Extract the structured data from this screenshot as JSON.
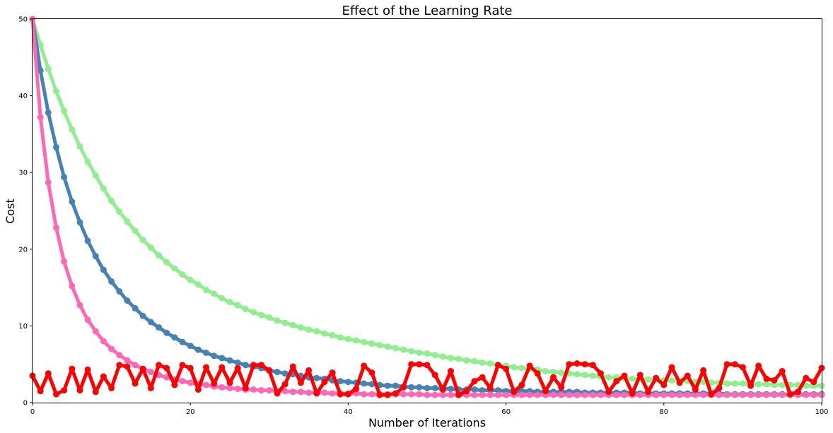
{
  "chart_data": {
    "type": "line",
    "title": "Effect of the Learning Rate",
    "xlabel": "Number of Iterations",
    "ylabel": "Cost",
    "xlim": [
      0,
      100
    ],
    "ylim": [
      0,
      50
    ],
    "xticks": [
      0,
      20,
      40,
      60,
      80,
      100
    ],
    "yticks": [
      0,
      10,
      20,
      30,
      40,
      50
    ],
    "xtick_labels": [
      "0",
      "20",
      "40",
      "60",
      "80",
      "100"
    ],
    "ytick_labels": [
      "0",
      "10",
      "20",
      "30",
      "40",
      "50"
    ],
    "grid": false,
    "legend": "none",
    "x": [
      0,
      1,
      2,
      3,
      4,
      5,
      6,
      7,
      8,
      9,
      10,
      11,
      12,
      13,
      14,
      15,
      16,
      17,
      18,
      19,
      20,
      21,
      22,
      23,
      24,
      25,
      26,
      27,
      28,
      29,
      30,
      31,
      32,
      33,
      34,
      35,
      36,
      37,
      38,
      39,
      40,
      41,
      42,
      43,
      44,
      45,
      46,
      47,
      48,
      49,
      50,
      51,
      52,
      53,
      54,
      55,
      56,
      57,
      58,
      59,
      60,
      61,
      62,
      63,
      64,
      65,
      66,
      67,
      68,
      69,
      70,
      71,
      72,
      73,
      74,
      75,
      76,
      77,
      78,
      79,
      80,
      81,
      82,
      83,
      84,
      85,
      86,
      87,
      88,
      89,
      90,
      91,
      92,
      93,
      94,
      95,
      96,
      97,
      98,
      99,
      100
    ],
    "series": [
      {
        "color": "#90ee90",
        "values": [
          50.0,
          46.6,
          43.5,
          40.6,
          38.0,
          35.6,
          33.4,
          31.4,
          29.6,
          27.9,
          26.3,
          24.9,
          23.6,
          22.4,
          21.2,
          20.2,
          19.2,
          18.3,
          17.5,
          16.7,
          16.0,
          15.4,
          14.7,
          14.2,
          13.6,
          13.1,
          12.7,
          12.2,
          11.8,
          11.4,
          11.1,
          10.7,
          10.4,
          10.1,
          9.8,
          9.5,
          9.3,
          9.0,
          8.8,
          8.5,
          8.3,
          8.1,
          7.9,
          7.7,
          7.5,
          7.3,
          7.1,
          6.9,
          6.7,
          6.5,
          6.4,
          6.2,
          6.0,
          5.8,
          5.7,
          5.5,
          5.4,
          5.2,
          5.1,
          4.9,
          4.8,
          4.6,
          4.5,
          4.4,
          4.3,
          4.1,
          4.0,
          3.9,
          3.8,
          3.7,
          3.6,
          3.5,
          3.4,
          3.3,
          3.3,
          3.2,
          3.1,
          3.1,
          3.0,
          3.0,
          2.9,
          2.9,
          2.8,
          2.8,
          2.7,
          2.7,
          2.6,
          2.6,
          2.5,
          2.5,
          2.5,
          2.4,
          2.4,
          2.4,
          2.3,
          2.3,
          2.3,
          2.3,
          2.2,
          2.2,
          2.2
        ]
      },
      {
        "color": "#4682b4",
        "values": [
          50.0,
          43.3,
          37.8,
          33.3,
          29.4,
          26.2,
          23.5,
          21.1,
          19.1,
          17.3,
          15.8,
          14.5,
          13.3,
          12.3,
          11.3,
          10.5,
          9.8,
          9.1,
          8.5,
          7.9,
          7.4,
          6.9,
          6.5,
          6.1,
          5.8,
          5.5,
          5.2,
          4.9,
          4.7,
          4.5,
          4.2,
          4.0,
          3.8,
          3.7,
          3.5,
          3.3,
          3.2,
          3.1,
          2.9,
          2.8,
          2.7,
          2.6,
          2.5,
          2.4,
          2.3,
          2.2,
          2.2,
          2.1,
          2.0,
          2.0,
          1.9,
          1.9,
          1.8,
          1.8,
          1.7,
          1.7,
          1.7,
          1.6,
          1.6,
          1.6,
          1.5,
          1.5,
          1.5,
          1.5,
          1.4,
          1.4,
          1.4,
          1.4,
          1.4,
          1.4,
          1.3,
          1.3,
          1.3,
          1.3,
          1.3,
          1.3,
          1.3,
          1.2,
          1.2,
          1.2,
          1.2,
          1.2,
          1.2,
          1.2,
          1.2,
          1.2,
          1.2,
          1.2,
          1.1,
          1.1,
          1.1,
          1.1,
          1.1,
          1.1,
          1.1,
          1.1,
          1.1,
          1.1,
          1.1,
          1.1,
          1.1
        ]
      },
      {
        "color": "#ff69b4",
        "values": [
          50.0,
          37.2,
          28.7,
          22.8,
          18.4,
          15.2,
          12.7,
          10.8,
          9.3,
          8.0,
          7.0,
          6.2,
          5.5,
          4.9,
          4.4,
          4.0,
          3.6,
          3.3,
          3.0,
          2.8,
          2.6,
          2.4,
          2.3,
          2.1,
          2.0,
          1.9,
          1.8,
          1.7,
          1.7,
          1.6,
          1.6,
          1.5,
          1.5,
          1.4,
          1.4,
          1.3,
          1.3,
          1.3,
          1.2,
          1.2,
          1.2,
          1.2,
          1.1,
          1.1,
          1.1,
          1.1,
          1.1,
          1.1,
          1.1,
          1.1,
          1.0,
          1.0,
          1.0,
          1.0,
          1.0,
          1.0,
          1.0,
          1.0,
          1.0,
          1.0,
          1.0,
          1.0,
          1.0,
          1.0,
          1.0,
          1.0,
          1.0,
          1.0,
          1.0,
          1.0,
          1.0,
          1.0,
          1.0,
          1.0,
          1.0,
          1.0,
          1.0,
          1.0,
          1.0,
          1.0,
          1.0,
          1.0,
          1.0,
          1.0,
          1.0,
          1.0,
          1.0,
          1.0,
          1.0,
          1.0,
          1.0,
          1.0,
          1.0,
          1.0,
          1.0,
          1.0,
          1.0,
          1.0,
          1.0,
          1.0,
          1.0
        ]
      },
      {
        "color": "#ff0000",
        "values": [
          3.5,
          1.5,
          3.8,
          1.1,
          1.6,
          4.4,
          1.6,
          4.3,
          1.4,
          3.4,
          1.9,
          4.9,
          4.7,
          2.5,
          4.4,
          1.9,
          4.9,
          4.5,
          2.3,
          4.9,
          4.5,
          1.7,
          4.6,
          2.5,
          4.6,
          2.6,
          4.5,
          1.9,
          4.9,
          4.9,
          4.2,
          1.2,
          2.4,
          4.7,
          2.6,
          4.2,
          1.2,
          2.7,
          3.9,
          1.1,
          1.1,
          1.8,
          4.8,
          3.9,
          1.0,
          1.0,
          1.2,
          2.0,
          5.0,
          5.0,
          4.9,
          3.6,
          1.7,
          4.1,
          1.0,
          1.5,
          2.8,
          3.3,
          1.9,
          4.9,
          4.4,
          1.4,
          2.3,
          4.8,
          3.8,
          1.5,
          3.3,
          2.0,
          5.0,
          5.1,
          5.0,
          4.9,
          3.8,
          1.4,
          2.8,
          3.5,
          1.2,
          3.6,
          1.4,
          3.2,
          2.3,
          4.6,
          2.6,
          3.5,
          1.7,
          4.2,
          1.1,
          1.9,
          5.0,
          5.0,
          4.6,
          2.2,
          4.8,
          3.1,
          2.9,
          4.1,
          1.1,
          1.4,
          3.2,
          2.7,
          4.5
        ]
      }
    ]
  }
}
